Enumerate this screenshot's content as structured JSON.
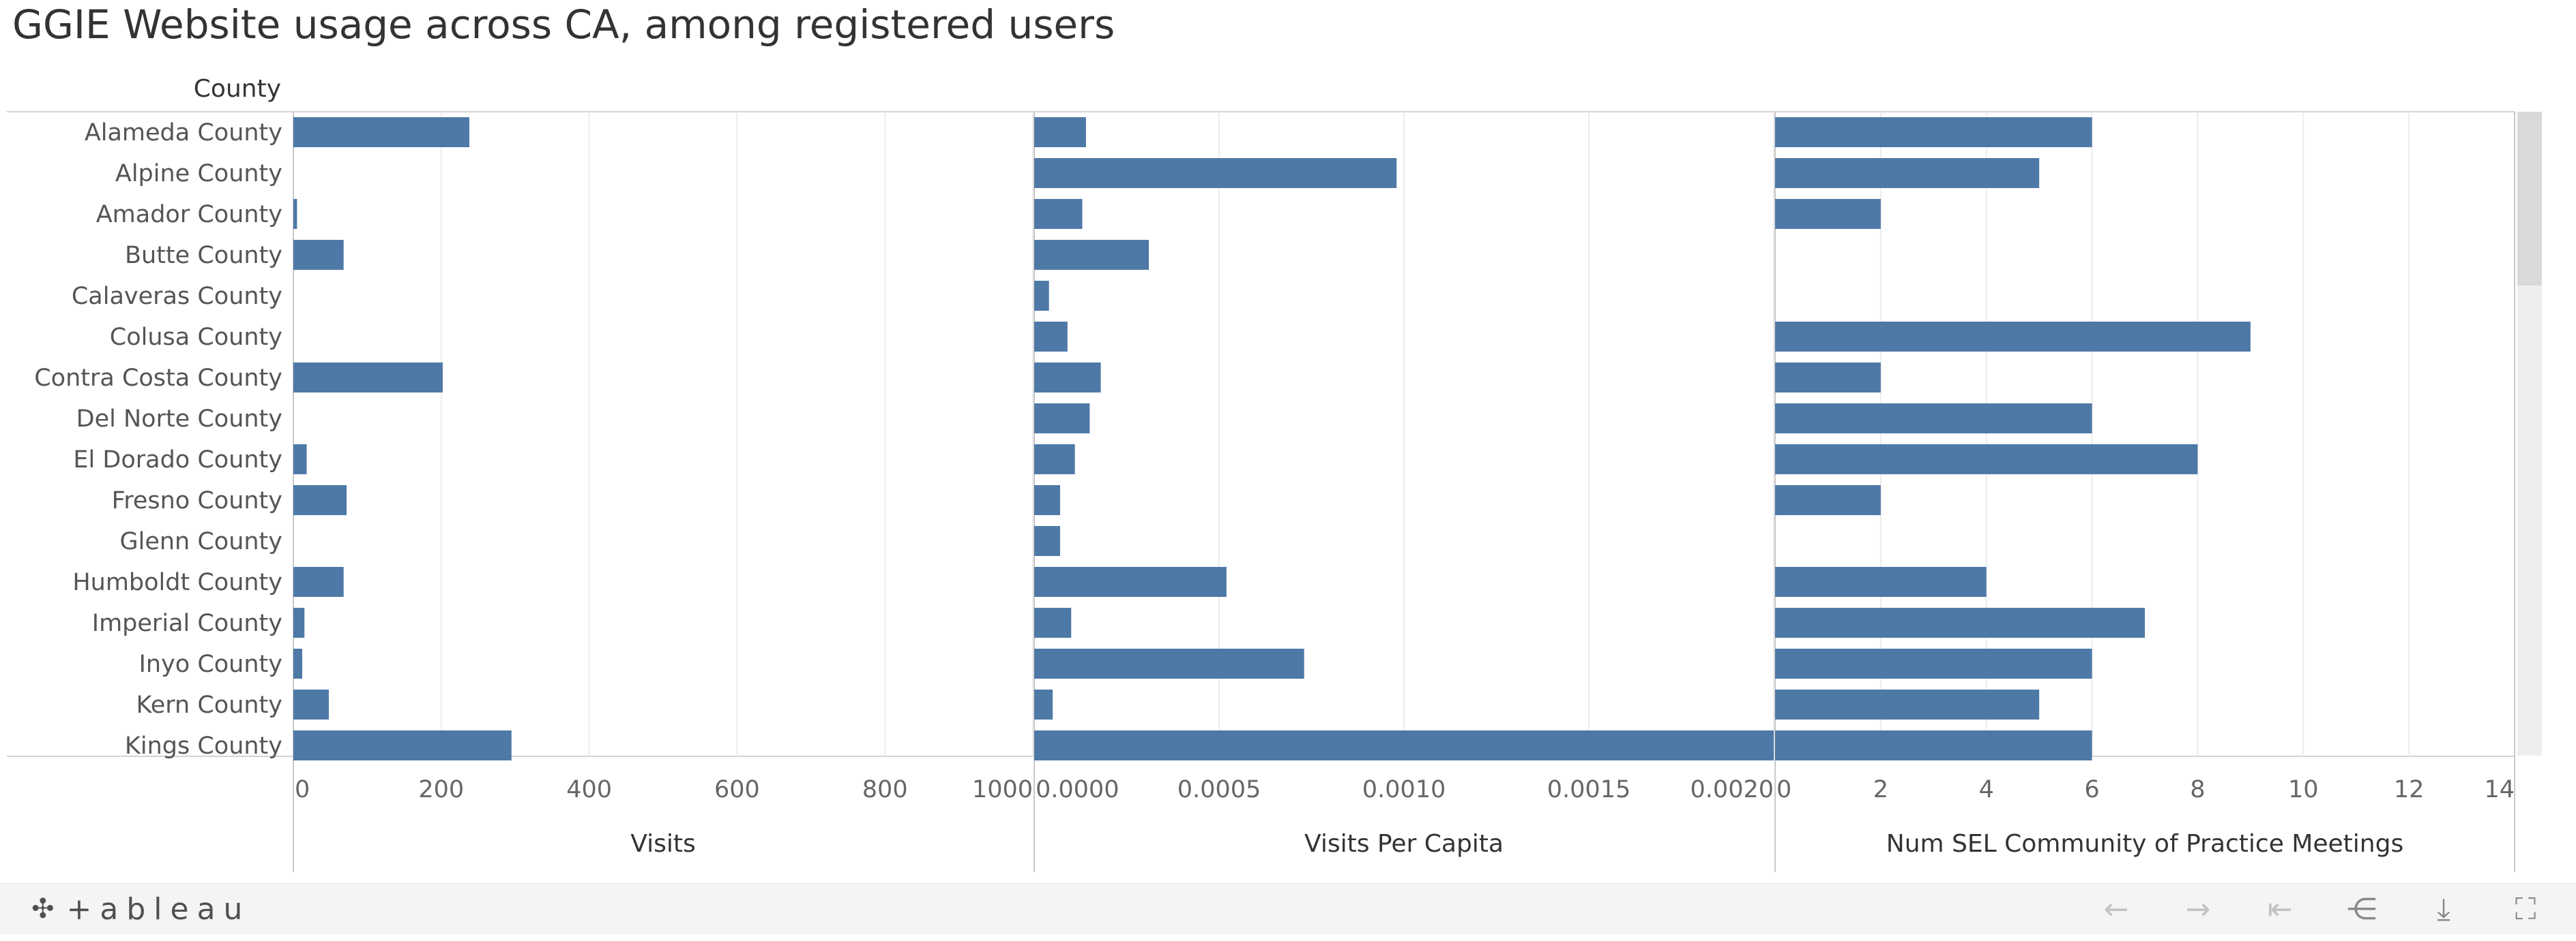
{
  "page": {
    "title": "GGIE Website usage across CA, among registered users",
    "row_header": "County"
  },
  "chart_data": {
    "type": "bar",
    "orientation": "horizontal",
    "categories": [
      "Alameda County",
      "Alpine County",
      "Amador County",
      "Butte County",
      "Calaveras County",
      "Colusa County",
      "Contra Costa County",
      "Del Norte County",
      "El Dorado County",
      "Fresno County",
      "Glenn County",
      "Humboldt County",
      "Imperial County",
      "Inyo County",
      "Kern County",
      "Kings County"
    ],
    "panels": [
      {
        "xlabel": "Visits",
        "xlim": [
          0,
          1000
        ],
        "ticks": [
          0,
          200,
          400,
          600,
          800,
          1000
        ],
        "tick_labels": [
          "0",
          "200",
          "400",
          "600",
          "800",
          "1000"
        ],
        "values": [
          238,
          null,
          5,
          68,
          null,
          null,
          202,
          null,
          18,
          72,
          null,
          68,
          15,
          12,
          48,
          295
        ]
      },
      {
        "xlabel": "Visits Per Capita",
        "xlim": [
          0,
          0.002
        ],
        "ticks": [
          0,
          0.0005,
          0.001,
          0.0015,
          0.002
        ],
        "tick_labels": [
          "0.0000",
          "0.0005",
          "0.0010",
          "0.0015",
          "0.0020"
        ],
        "values": [
          0.00014,
          0.00098,
          0.00013,
          0.00031,
          4e-05,
          9e-05,
          0.00018,
          0.00015,
          0.00011,
          7e-05,
          7e-05,
          0.00052,
          0.0001,
          0.00073,
          5e-05,
          0.002
        ]
      },
      {
        "xlabel": "Num SEL Community of Practice Meetings",
        "xlim": [
          0,
          14
        ],
        "ticks": [
          0,
          2,
          4,
          6,
          8,
          10,
          12,
          14
        ],
        "tick_labels": [
          "0",
          "2",
          "4",
          "6",
          "8",
          "10",
          "12",
          "14"
        ],
        "values": [
          6,
          5,
          2,
          null,
          null,
          9,
          2,
          6,
          8,
          2,
          null,
          4,
          7,
          6,
          5,
          6
        ]
      }
    ],
    "bar_color": "#4e79a7",
    "grid": true
  },
  "footer": {
    "brand": "+ableau",
    "tools": [
      {
        "name": "undo-icon",
        "glyph": "←",
        "enabled": false
      },
      {
        "name": "redo-icon",
        "glyph": "→",
        "enabled": false
      },
      {
        "name": "revert-icon",
        "glyph": "⇤",
        "enabled": false
      },
      {
        "name": "share-icon",
        "glyph": "⋲",
        "enabled": true
      },
      {
        "name": "download-icon",
        "glyph": "⤓",
        "enabled": true
      },
      {
        "name": "fullscreen-icon",
        "glyph": "⛶",
        "enabled": true
      }
    ]
  }
}
